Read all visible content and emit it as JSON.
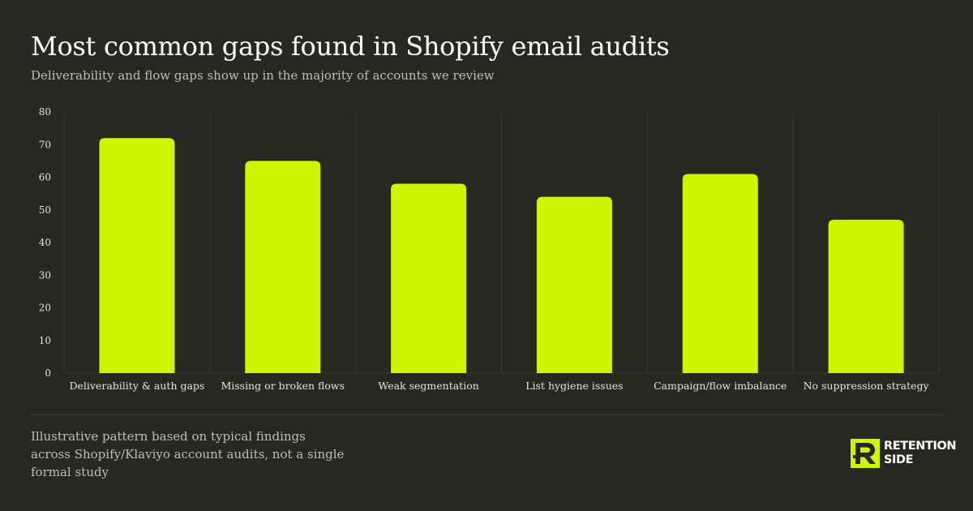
{
  "header": {
    "title": "Most common gaps found in Shopify email audits",
    "subtitle": "Deliverability and flow gaps show up in the majority of accounts we review"
  },
  "chart_data": {
    "type": "bar",
    "categories": [
      "Deliverability & auth gaps",
      "Missing or broken flows",
      "Weak segmentation",
      "List hygiene issues",
      "Campaign/flow imbalance",
      "No suppression strategy"
    ],
    "values": [
      72,
      65,
      58,
      54,
      61,
      47
    ],
    "ylim": [
      0,
      80
    ],
    "yticks": [
      0,
      10,
      20,
      30,
      40,
      50,
      60,
      70,
      80
    ],
    "grid": "vertical separators between categories",
    "bar_color": "#cdf500"
  },
  "footer": {
    "note": "Illustrative pattern based on typical findings across Shopify/Klaviyo account audits, not a single formal study",
    "logo_icon": "retention-side-logo-icon",
    "logo_line1": "RETENTION",
    "logo_line2": "SIDE"
  },
  "colors": {
    "background": "#272821",
    "accent": "#cdf500",
    "grid": "#3a3b33",
    "muted_text": "#bfbfb6"
  }
}
